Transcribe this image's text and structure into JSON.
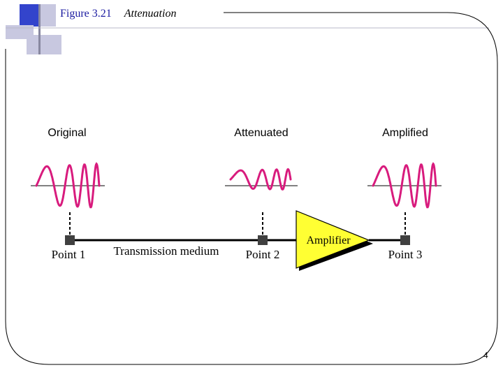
{
  "slide": {
    "figure_label": "Figure 3.21",
    "figure_title": "Attenuation",
    "page_number": "4"
  },
  "diagram": {
    "signal_labels": {
      "original": "Original",
      "attenuated": "Attenuated",
      "amplified": "Amplified"
    },
    "points": {
      "p1": "Point 1",
      "p2": "Point 2",
      "p3": "Point 3"
    },
    "medium_label": "Transmission medium",
    "amplifier_label": "Amplifier"
  },
  "colors": {
    "signal": "#d81b7d",
    "amplifier_fill": "#ffff33",
    "title_accent": "#1a1aa0",
    "corner_blue": "#3344cc",
    "corner_gray": "#b8b8c8"
  }
}
